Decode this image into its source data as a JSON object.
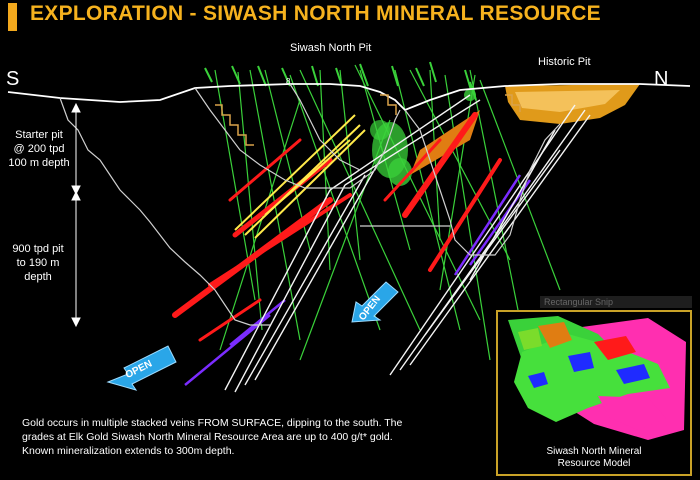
{
  "title": "EXPLORATION - SIWASH NORTH MINERAL RESOURCE",
  "section": {
    "south_label": "S",
    "north_label": "N",
    "pit_north_label": "Siwash North Pit",
    "pit_historic_label": "Historic Pit",
    "starter_pit": [
      "Starter pit",
      "@ 200 tpd",
      "100 m depth"
    ],
    "main_pit": [
      "900 tpd pit",
      "to 190 m",
      "depth"
    ],
    "open_label": "OPEN",
    "mid_marker": "8"
  },
  "caption": {
    "line1": "Gold occurs in multiple stacked veins FROM SURFACE, dipping to the south. The",
    "line2": "grades at Elk Gold Siwash North Mineral Resource Area are up to 400 g/t* gold.",
    "line3": "Known mineralization extends to 300m depth."
  },
  "inset": {
    "tooltip": "Rectangular Snip",
    "caption_line1": "Siwash North Mineral",
    "caption_line2": "Resource Model"
  },
  "colors": {
    "accent": "#f2a81d",
    "vein_red": "#ff1a1a",
    "vein_yellow": "#ffe94a",
    "drill_green": "#3ad13a",
    "historic_pit": "#e09a1a",
    "arrow_blue": "#2aa6e8",
    "inset_magenta": "#ff2fb0"
  }
}
